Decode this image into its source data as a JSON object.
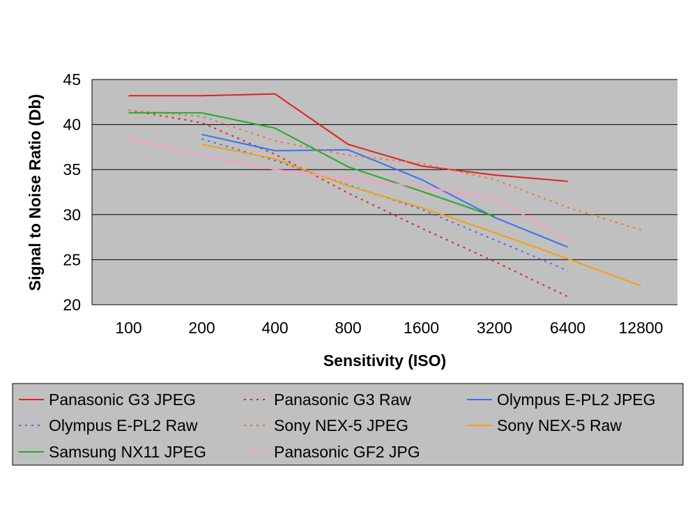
{
  "chart_data": {
    "type": "line",
    "title": "",
    "xlabel": "Sensitivity (ISO)",
    "ylabel": "Signal to Noise Ratio (Db)",
    "categories": [
      "100",
      "200",
      "400",
      "800",
      "1600",
      "3200",
      "6400",
      "12800"
    ],
    "ylim": [
      20,
      45
    ],
    "yticks": [
      20,
      25,
      30,
      35,
      40,
      45
    ],
    "grid": true,
    "legend_position": "bottom",
    "series": [
      {
        "name": "Panasonic G3 JPEG",
        "color": "#e02020",
        "style": "solid",
        "values": [
          43.2,
          43.2,
          43.4,
          37.8,
          35.4,
          34.4,
          33.7,
          null
        ]
      },
      {
        "name": "Panasonic G3 Raw",
        "color": "#e02020",
        "style": "dotted",
        "values": [
          41.6,
          40.2,
          36.7,
          32.4,
          28.5,
          24.8,
          20.9,
          null
        ]
      },
      {
        "name": "Olympus E-PL2 JPEG",
        "color": "#3b6ef5",
        "style": "solid",
        "values": [
          null,
          38.9,
          37.1,
          37.2,
          33.9,
          29.7,
          26.4,
          null
        ]
      },
      {
        "name": "Olympus E-PL2 Raw",
        "color": "#3b6ef5",
        "style": "dotted",
        "values": [
          null,
          38.4,
          36.0,
          33.3,
          30.6,
          27.2,
          23.8,
          null
        ]
      },
      {
        "name": "Sony NEX-5 JPEG",
        "color": "#f07030",
        "style": "dotted",
        "values": [
          41.6,
          40.9,
          38.2,
          36.6,
          35.7,
          33.9,
          30.8,
          28.3
        ]
      },
      {
        "name": "Sony NEX-5 Raw",
        "color": "#f5a010",
        "style": "solid",
        "values": [
          null,
          37.8,
          36.2,
          33.2,
          30.8,
          28.0,
          25.1,
          22.1
        ]
      },
      {
        "name": "Samsung NX11 JPEG",
        "color": "#22aa22",
        "style": "solid",
        "values": [
          41.3,
          41.3,
          39.6,
          35.3,
          32.6,
          29.8,
          null,
          null
        ]
      },
      {
        "name": "Panasonic GF2 JPG",
        "color": "#ff99cc",
        "style": "solid",
        "values": [
          38.5,
          36.6,
          35.0,
          34.0,
          33.1,
          31.8,
          27.2,
          null
        ]
      }
    ]
  }
}
